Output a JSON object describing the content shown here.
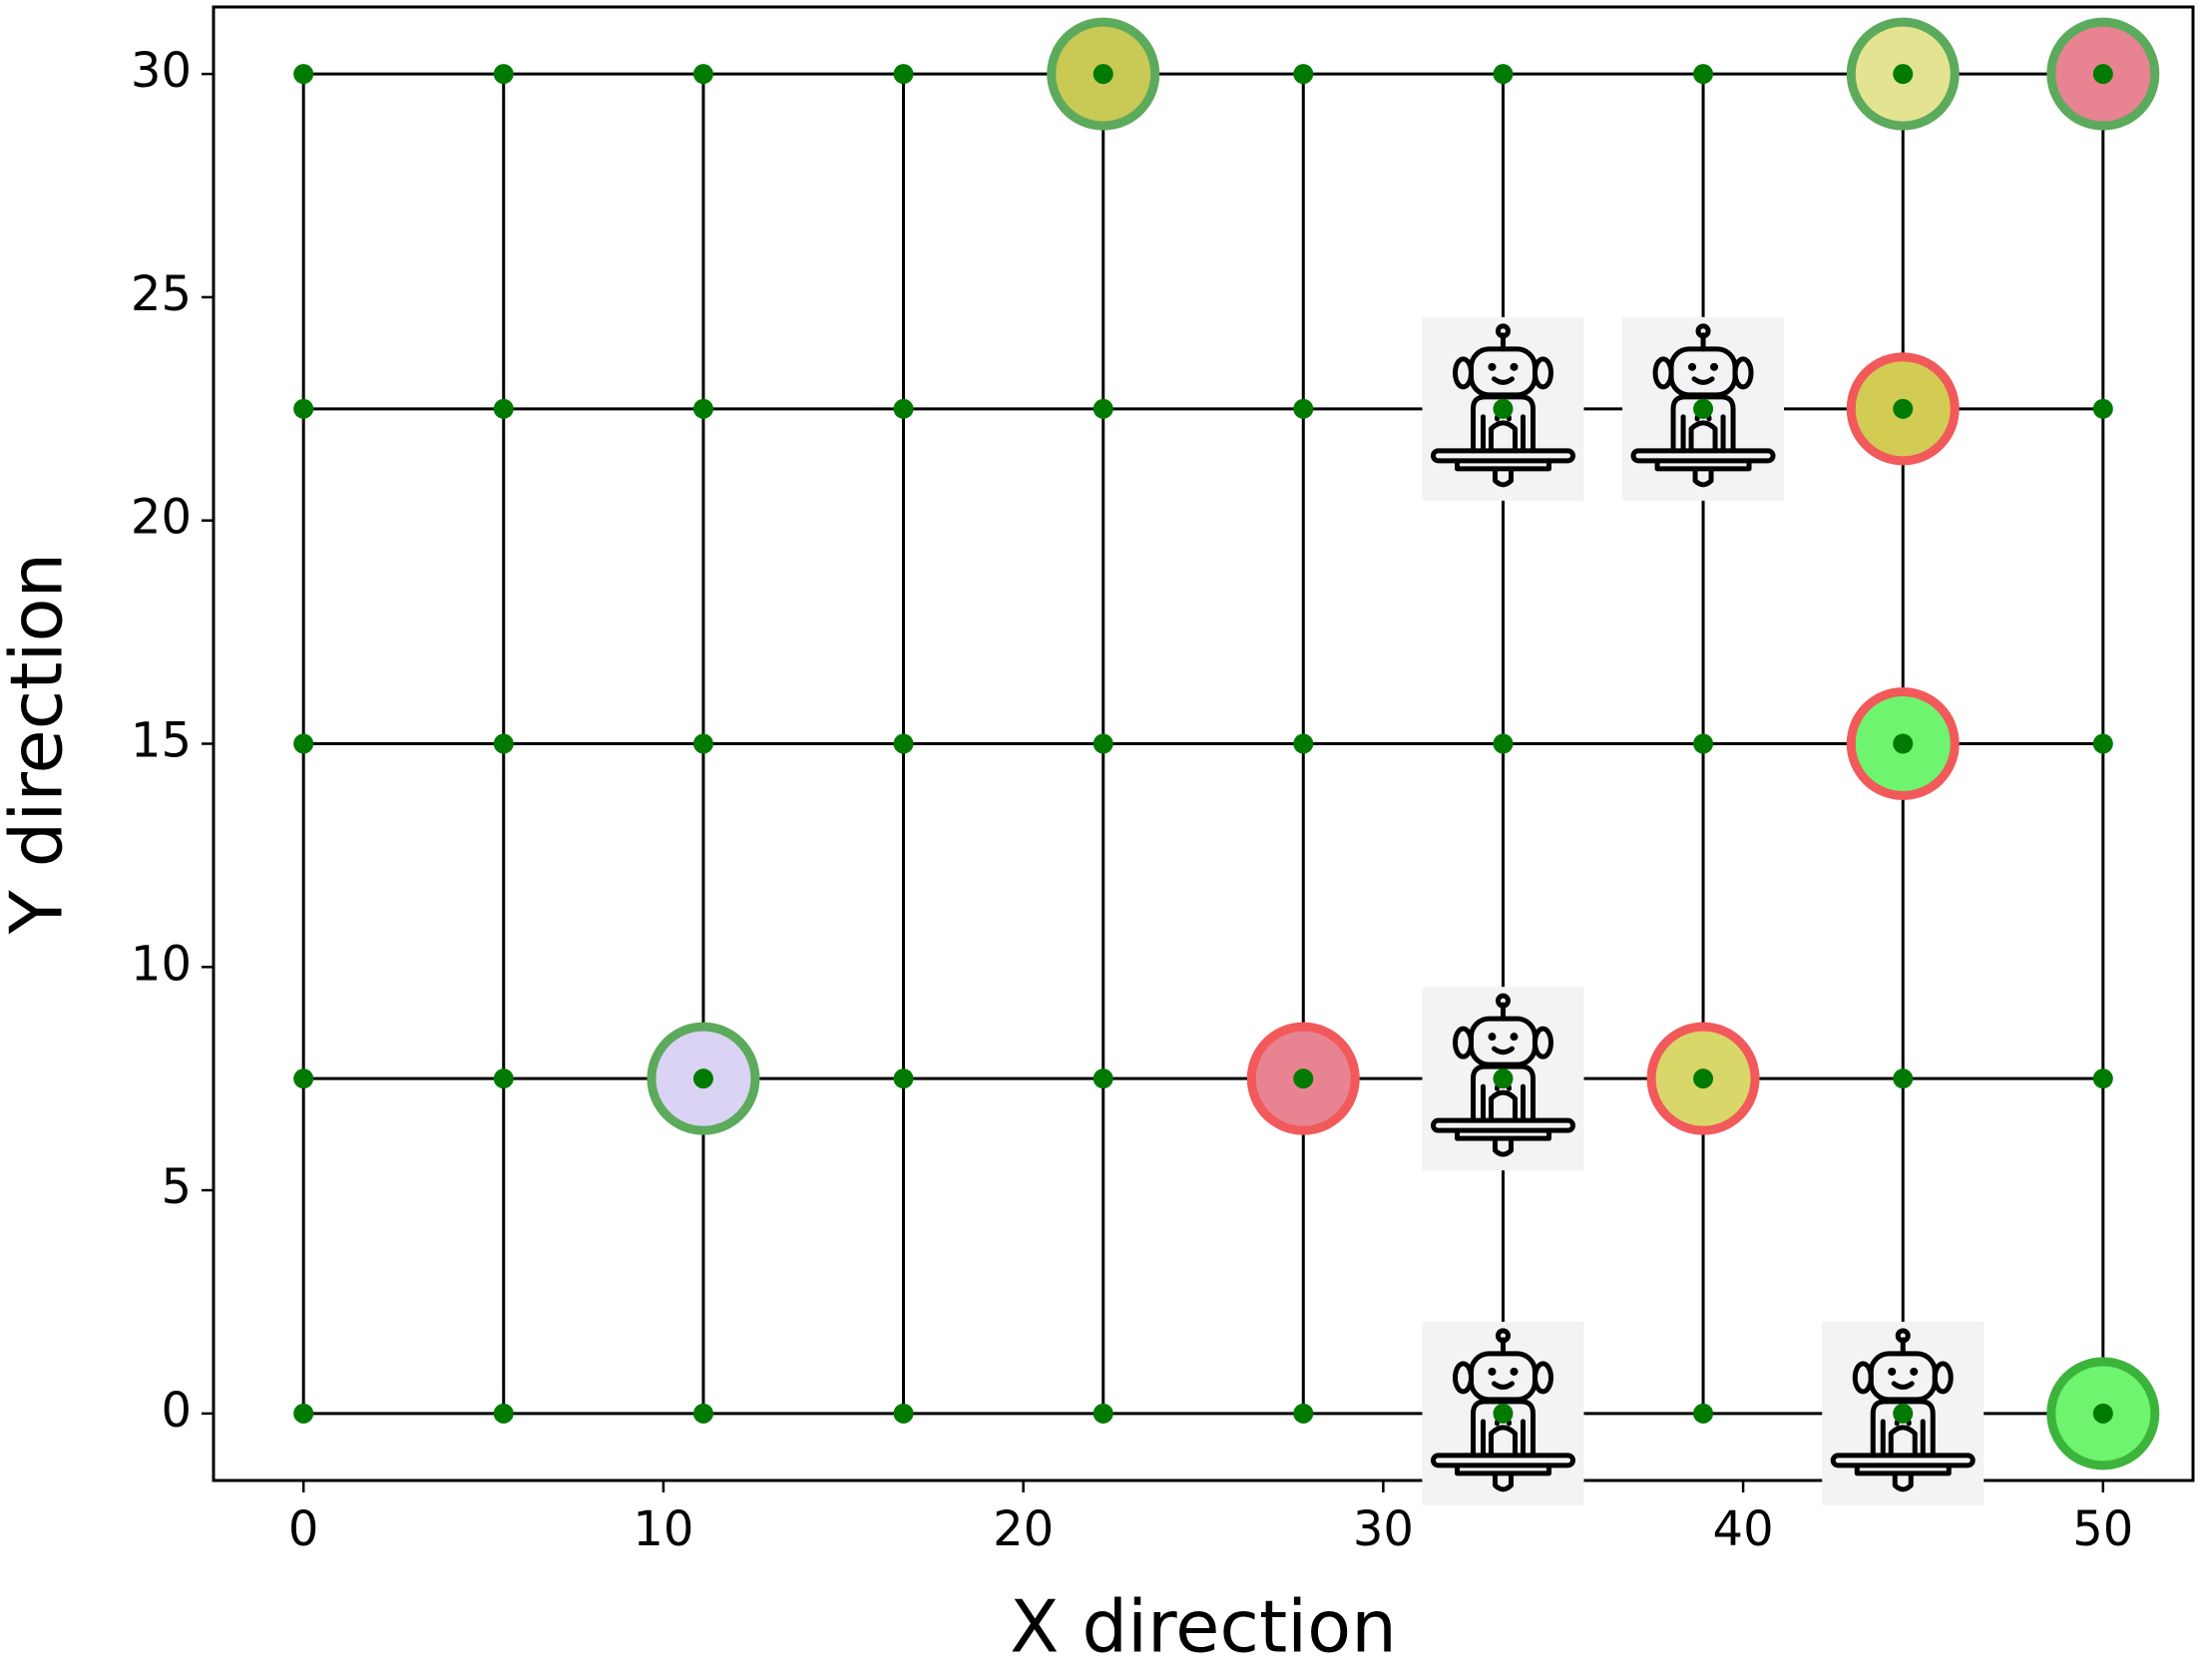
{
  "chart_data": {
    "type": "grid",
    "x_label": "X direction",
    "y_label": "Y direction",
    "xlim": [
      -2.5,
      52.5
    ],
    "ylim": [
      -1.5,
      31.5
    ],
    "xticks": [
      0,
      10,
      20,
      30,
      40,
      50
    ],
    "yticks": [
      0,
      5,
      10,
      15,
      20,
      25,
      30
    ],
    "grid_x": [
      0,
      5.56,
      11.11,
      16.67,
      22.22,
      27.78,
      33.33,
      38.89,
      44.44,
      50
    ],
    "grid_y": [
      0,
      7.5,
      15,
      22.5,
      30
    ],
    "line_color": "#000000",
    "node_color": "#007a00",
    "markers": [
      {
        "x": 22.22,
        "y": 30,
        "fill": "#c9c955",
        "edge": "#5caa5c"
      },
      {
        "x": 44.44,
        "y": 30,
        "fill": "#e3e392",
        "edge": "#5caa5c"
      },
      {
        "x": 50,
        "y": 30,
        "fill": "#e88392",
        "edge": "#5caa5c"
      },
      {
        "x": 44.44,
        "y": 22.5,
        "fill": "#d2cc55",
        "edge": "#f2595b"
      },
      {
        "x": 44.44,
        "y": 15,
        "fill": "#6ef46e",
        "edge": "#f2595b"
      },
      {
        "x": 11.11,
        "y": 7.5,
        "fill": "#dad3f4",
        "edge": "#5caa5c"
      },
      {
        "x": 27.78,
        "y": 7.5,
        "fill": "#e88392",
        "edge": "#f2595b"
      },
      {
        "x": 38.89,
        "y": 7.5,
        "fill": "#d9d66a",
        "edge": "#f2595b"
      },
      {
        "x": 50,
        "y": 0,
        "fill": "#6ef46e",
        "edge": "#3cb43c"
      }
    ],
    "robots": {
      "x": [
        33.33,
        38.89,
        33.33,
        33.33,
        44.44
      ],
      "y": [
        22.5,
        22.5,
        7.5,
        0,
        0
      ]
    }
  }
}
